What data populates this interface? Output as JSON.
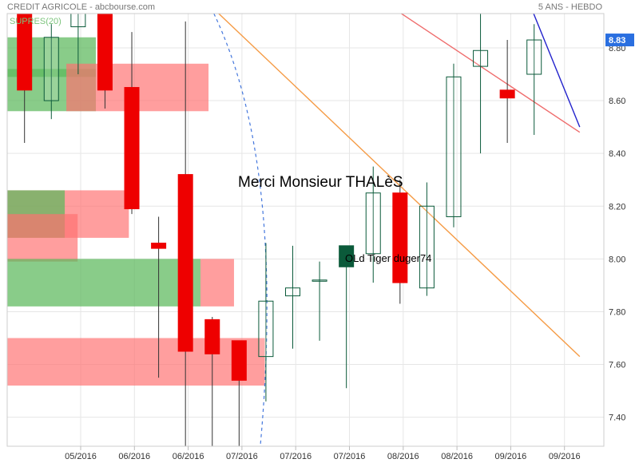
{
  "header": {
    "title": "CREDIT AGRICOLE - abcbourse.com",
    "period": "5 ANS - HEBDO",
    "indicator": "SUPRES(20)"
  },
  "annotations": {
    "main_text": "Merci Monsieur THALèS",
    "signature": "OLd Tiger duger74"
  },
  "colors": {
    "grid": "#e6e6e6",
    "bull": "#0b5a3a",
    "bear": "#ee0000",
    "support_zone": "#5cb85c",
    "resistance_zone": "#ff7070",
    "orange_trend": "#f59b45",
    "red_trend": "#ef6b6b",
    "blue_trend": "#2222cc",
    "blue_arc": "#4477dd",
    "price_badge": "#2a6fe0"
  },
  "chart_data": {
    "type": "candlestick",
    "title": "CREDIT AGRICOLE - abcbourse.com",
    "ylim": [
      7.29,
      8.93
    ],
    "y_ticks": [
      7.4,
      7.6,
      7.8,
      8.0,
      8.2,
      8.4,
      8.6,
      8.8
    ],
    "x_ticks": [
      "05/2016",
      "06/2016",
      "06/2016",
      "07/2016",
      "07/2016",
      "07/2016",
      "08/2016",
      "08/2016",
      "09/2016",
      "09/2016"
    ],
    "last_price": "8.83",
    "candles": [
      {
        "open": 8.93,
        "high": 8.93,
        "low": 8.44,
        "close": 8.64
      },
      {
        "open": 8.6,
        "high": 8.89,
        "low": 8.53,
        "close": 8.84
      },
      {
        "open": 8.88,
        "high": 8.93,
        "low": 8.7,
        "close": 8.93
      },
      {
        "open": 8.93,
        "high": 8.93,
        "low": 8.57,
        "close": 8.64
      },
      {
        "open": 8.65,
        "high": 8.86,
        "low": 8.17,
        "close": 8.19
      },
      {
        "open": 8.06,
        "high": 8.16,
        "low": 7.55,
        "close": 8.04
      },
      {
        "open": 8.32,
        "high": 8.9,
        "low": 7.29,
        "close": 7.65
      },
      {
        "open": 7.77,
        "high": 7.78,
        "low": 7.29,
        "close": 7.64
      },
      {
        "open": 7.69,
        "high": 7.69,
        "low": 7.29,
        "close": 7.54
      },
      {
        "open": 7.63,
        "high": 8.06,
        "low": 7.46,
        "close": 7.84
      },
      {
        "open": 7.86,
        "high": 8.05,
        "low": 7.66,
        "close": 7.89
      },
      {
        "open": 7.92,
        "high": 7.99,
        "low": 7.69,
        "close": 7.92
      },
      {
        "open": 7.97,
        "high": 8.05,
        "low": 7.51,
        "close": 8.05
      },
      {
        "open": 8.02,
        "high": 8.35,
        "low": 7.91,
        "close": 8.25
      },
      {
        "open": 8.25,
        "high": 8.3,
        "low": 7.83,
        "close": 7.91
      },
      {
        "open": 7.89,
        "high": 8.29,
        "low": 7.86,
        "close": 8.2
      },
      {
        "open": 8.16,
        "high": 8.74,
        "low": 8.12,
        "close": 8.69
      },
      {
        "open": 8.73,
        "high": 8.93,
        "low": 8.4,
        "close": 8.79
      },
      {
        "open": 8.64,
        "high": 8.83,
        "low": 8.44,
        "close": 8.61
      },
      {
        "open": 8.7,
        "high": 8.89,
        "low": 8.47,
        "close": 8.83
      }
    ],
    "zones": [
      {
        "kind": "support",
        "y0": 8.56,
        "y1": 8.84,
        "c0": -1.5,
        "c1": 2.66
      },
      {
        "kind": "support",
        "y0": 8.69,
        "y1": 8.72,
        "c0": -1.5,
        "c1": 2.66
      },
      {
        "kind": "resistance",
        "y0": 8.56,
        "y1": 8.74,
        "c0": 1.56,
        "c1": 6.86
      },
      {
        "kind": "resistance",
        "y0": 8.08,
        "y1": 8.26,
        "c0": -1.5,
        "c1": 3.89
      },
      {
        "kind": "support",
        "y0": 8.08,
        "y1": 8.26,
        "c0": -1.5,
        "c1": 1.5
      },
      {
        "kind": "resistance",
        "y0": 7.99,
        "y1": 8.17,
        "c0": -1.5,
        "c1": 1.98
      },
      {
        "kind": "support",
        "y0": 7.82,
        "y1": 8.0,
        "c0": -1.5,
        "c1": 6.56
      },
      {
        "kind": "resistance",
        "y0": 7.82,
        "y1": 8.0,
        "c0": 6.56,
        "c1": 7.81
      },
      {
        "kind": "resistance",
        "y0": 7.52,
        "y1": 7.7,
        "c0": -1.5,
        "c1": 8.96
      }
    ],
    "trendlines": [
      {
        "name": "orange",
        "c0": 7.24,
        "v0": 8.93,
        "c1": 20.7,
        "v1": 7.63
      },
      {
        "name": "red",
        "c0": 14.05,
        "v0": 8.93,
        "c1": 20.7,
        "v1": 8.48
      },
      {
        "name": "blue",
        "c0": 18.98,
        "v0": 8.93,
        "c1": 20.7,
        "v1": 8.5
      }
    ],
    "arc": {
      "c_top": 7.06,
      "v_top": 8.93,
      "c_bottom": 8.79,
      "v_bottom": 7.29
    }
  }
}
